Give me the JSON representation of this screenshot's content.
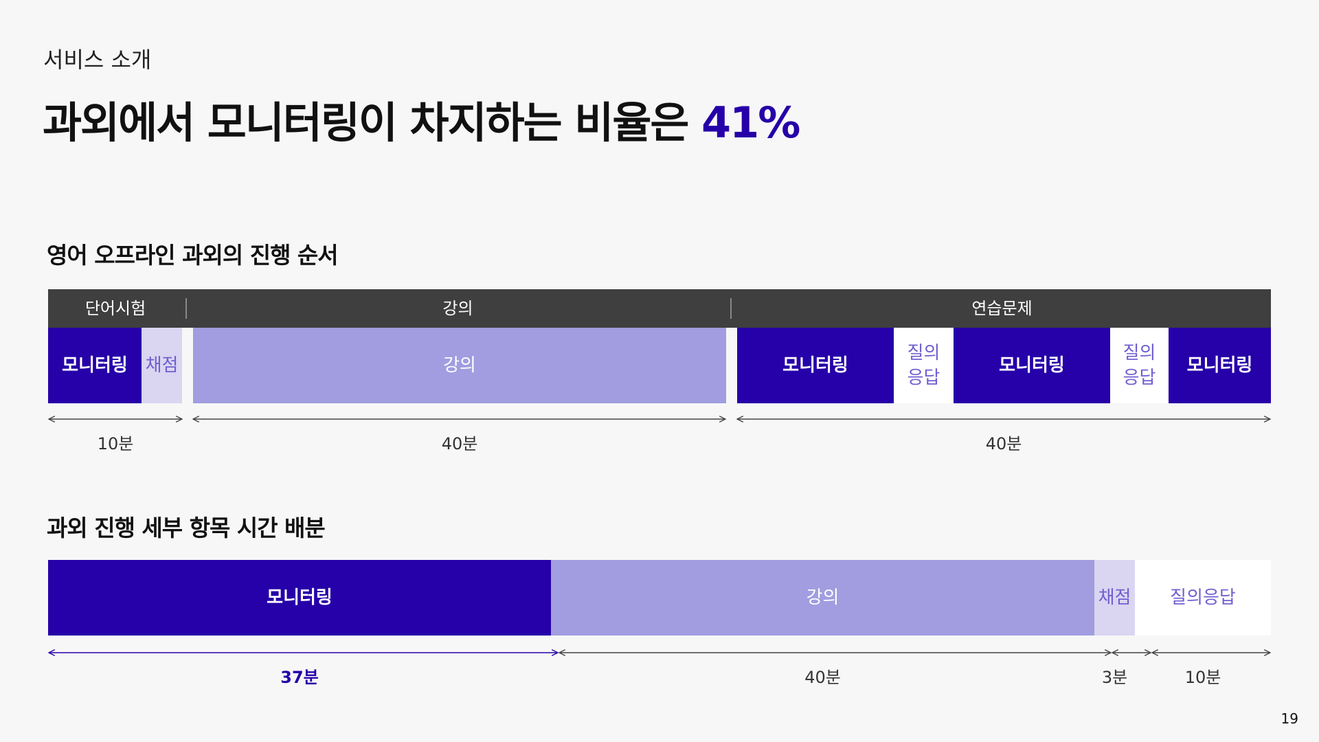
{
  "header": {
    "section_label": "서비스 소개",
    "title_prefix": "과외에서 모니터링이 차지하는 비율은",
    "title_highlight": "41%"
  },
  "colors": {
    "monitoring": "#2600a8",
    "lecture": "#a19de0",
    "grading": "#dad5f1",
    "qa": "#ffffff",
    "phase_header": "#3f3f3f",
    "highlight": "#2600a8"
  },
  "timeline": {
    "heading": "영어 오프라인 과외의 진행 순서",
    "phases": [
      {
        "label": "단어시험",
        "duration": "10분"
      },
      {
        "label": "강의",
        "duration": "40분"
      },
      {
        "label": "연습문제",
        "duration": "40분"
      }
    ],
    "segments": [
      {
        "label": "모니터링",
        "type": "monitoring",
        "phase": 0
      },
      {
        "label": "채점",
        "type": "grading",
        "phase": 0
      },
      {
        "label": "강의",
        "type": "lecture",
        "phase": 1
      },
      {
        "label": "모니터링",
        "type": "monitoring",
        "phase": 2
      },
      {
        "label": "질의\n응답",
        "type": "qa",
        "phase": 2
      },
      {
        "label": "모니터링",
        "type": "monitoring",
        "phase": 2
      },
      {
        "label": "질의\n응답",
        "type": "qa",
        "phase": 2
      },
      {
        "label": "모니터링",
        "type": "monitoring",
        "phase": 2
      }
    ]
  },
  "allocation": {
    "heading": "과외 진행 세부 항목 시간 배분",
    "items": [
      {
        "label": "모니터링",
        "type": "monitoring",
        "minutes": 37,
        "duration_label": "37분",
        "emphasis": true
      },
      {
        "label": "강의",
        "type": "lecture",
        "minutes": 40,
        "duration_label": "40분",
        "emphasis": false
      },
      {
        "label": "채점",
        "type": "grading",
        "minutes": 3,
        "duration_label": "3분",
        "emphasis": false
      },
      {
        "label": "질의응답",
        "type": "qa",
        "minutes": 10,
        "duration_label": "10분",
        "emphasis": false
      }
    ]
  },
  "chart_data": {
    "type": "bar",
    "title": "과외 진행 세부 항목 시간 배분",
    "categories": [
      "모니터링",
      "강의",
      "채점",
      "질의응답"
    ],
    "values": [
      37,
      40,
      3,
      10
    ],
    "value_labels": [
      "37분",
      "40분",
      "3분",
      "10분"
    ]
  },
  "footer": {
    "page_number": "19"
  }
}
